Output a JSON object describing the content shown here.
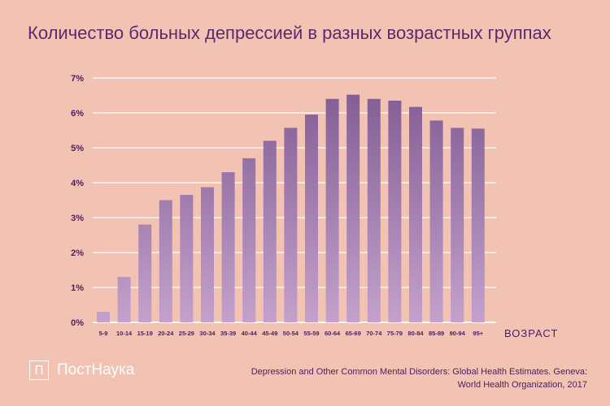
{
  "title": "Количество больных депрессией в разных возрастных группах",
  "logo": {
    "mark": "П",
    "text": "ПостНаука"
  },
  "source": {
    "line1": "Depression and Other Common Mental Disorders: Global Health Estimates. Geneva:",
    "line2": "World Health Organization, 2017"
  },
  "colors": {
    "background": "#f2c2b2",
    "bar_top": "#7e5a92",
    "bar_bottom": "#c4a0cc",
    "text": "#4a1f5c",
    "grid": "#ffffff"
  },
  "chart_data": {
    "type": "bar",
    "title": "Количество больных депрессией в разных возрастных группах",
    "xlabel": "ВОЗРАСТ",
    "ylabel": "",
    "ylim": [
      0,
      7
    ],
    "yticks": [
      0,
      1,
      2,
      3,
      4,
      5,
      6,
      7
    ],
    "ytick_labels": [
      "0%",
      "1%",
      "2%",
      "3%",
      "4%",
      "5%",
      "6%",
      "7%"
    ],
    "grid": true,
    "categories": [
      "5-9",
      "10-14",
      "15-19",
      "20-24",
      "25-29",
      "30-34",
      "35-39",
      "40-44",
      "45-49",
      "50-54",
      "55-59",
      "60-64",
      "65-69",
      "70-74",
      "75-79",
      "80-84",
      "85-89",
      "90-94",
      "95+"
    ],
    "values": [
      0.3,
      1.3,
      2.8,
      3.5,
      3.65,
      3.87,
      4.3,
      4.7,
      5.2,
      5.57,
      5.95,
      6.4,
      6.52,
      6.4,
      6.35,
      6.17,
      5.78,
      5.57,
      5.55
    ]
  }
}
